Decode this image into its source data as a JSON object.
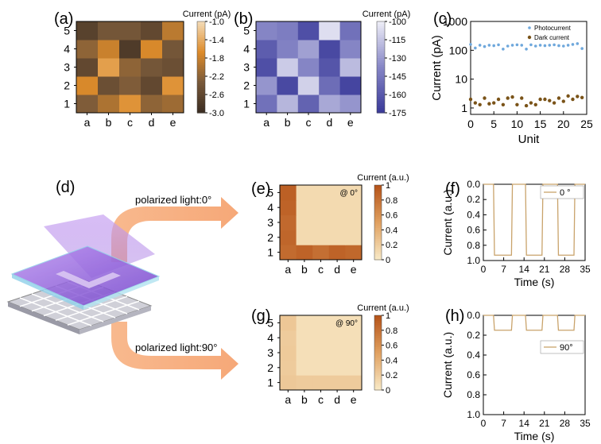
{
  "panel_labels": {
    "a": "(a)",
    "b": "(b)",
    "c": "(c)",
    "d": "(d)",
    "e": "(e)",
    "f": "(f)",
    "g": "(g)",
    "h": "(h)"
  },
  "arrows": {
    "top_label": "polarized light:0°",
    "bottom_label": "polarized light:90°"
  },
  "colors": {
    "brown_dark": "#3d2e22",
    "brown_light": "#f3d9b3",
    "orange": "#dd8b2a",
    "blue_dark": "#3b3b9a",
    "blue_light": "#ececf6",
    "arrow": "#f8b98e",
    "trace": "#c9a36b",
    "photo": "#6fa8dc",
    "dark": "#7a5318",
    "purple": "#a070e0"
  },
  "chart_data": [
    {
      "id": "a",
      "type": "heatmap",
      "colorbar_title": "Current (pA)",
      "x_categories": [
        "a",
        "b",
        "c",
        "d",
        "e"
      ],
      "y_categories": [
        "1",
        "2",
        "3",
        "4",
        "5"
      ],
      "values": [
        [
          -2.3,
          -2.0,
          -1.6,
          -2.2,
          -2.1
        ],
        [
          -1.7,
          -2.5,
          -2.3,
          -2.6,
          -1.6
        ],
        [
          -2.6,
          -1.5,
          -2.2,
          -2.4,
          -2.5
        ],
        [
          -2.2,
          -1.8,
          -2.8,
          -1.7,
          -2.4
        ],
        [
          -2.7,
          -2.4,
          -2.4,
          -2.6,
          -1.9
        ]
      ],
      "vmin": -3.0,
      "vmax": -1.0,
      "colorbar_ticks": [
        "-1.0",
        "-1.4",
        "-1.8",
        "-2.2",
        "-2.6",
        "-3.0"
      ]
    },
    {
      "id": "b",
      "type": "heatmap",
      "colorbar_title": "Current (pA)",
      "x_categories": [
        "a",
        "b",
        "c",
        "d",
        "e"
      ],
      "y_categories": [
        "1",
        "2",
        "3",
        "4",
        "5"
      ],
      "values": [
        [
          -148,
          -120,
          -155,
          -125,
          -132
        ],
        [
          -132,
          -168,
          -110,
          -150,
          -170
        ],
        [
          -165,
          -112,
          -138,
          -162,
          -118
        ],
        [
          -158,
          -140,
          -128,
          -168,
          -138
        ],
        [
          -138,
          -142,
          -165,
          -105,
          -148
        ]
      ],
      "vmin": -175,
      "vmax": -100,
      "colorbar_ticks": [
        "-100",
        "-115",
        "-130",
        "-145",
        "-160",
        "-175"
      ]
    },
    {
      "id": "c",
      "type": "scatter",
      "xlabel": "Unit",
      "ylabel": "Current (pA)",
      "yscale": "log",
      "xlim": [
        0,
        25
      ],
      "ylim": [
        0.6,
        1000
      ],
      "x_ticks": [
        "0",
        "5",
        "10",
        "15",
        "20",
        "25"
      ],
      "y_ticks": [
        "1",
        "10",
        "100",
        "1000"
      ],
      "series": [
        {
          "name": "Photocurrent",
          "values": [
            160,
            120,
            150,
            135,
            150,
            145,
            155,
            110,
            140,
            150,
            155,
            150,
            110,
            155,
            140,
            150,
            145,
            150,
            155,
            145,
            140,
            150,
            160,
            170,
            115
          ]
        },
        {
          "name": "Dark current",
          "values": [
            2.0,
            1.5,
            1.3,
            2.2,
            1.4,
            1.5,
            2.0,
            1.3,
            2.2,
            2.4,
            1.3,
            2.2,
            1.2,
            1.5,
            1.3,
            2.0,
            2.0,
            1.8,
            1.5,
            2.2,
            1.7,
            2.6,
            2.0,
            2.5,
            2.3
          ]
        }
      ]
    },
    {
      "id": "e",
      "type": "heatmap",
      "annotation": "@ 0°",
      "colorbar_title": "Current (a.u.)",
      "x_categories": [
        "a",
        "b",
        "c",
        "d",
        "e"
      ],
      "y_categories": [
        "1",
        "2",
        "3",
        "4",
        "5"
      ],
      "values": [
        [
          0.85,
          0.9,
          0.82,
          0.9,
          0.87
        ],
        [
          0.88,
          0.1,
          0.1,
          0.1,
          0.1
        ],
        [
          0.86,
          0.1,
          0.1,
          0.1,
          0.1
        ],
        [
          0.9,
          0.1,
          0.1,
          0.1,
          0.1
        ],
        [
          0.92,
          0.1,
          0.1,
          0.1,
          0.1
        ]
      ],
      "vmin": 0,
      "vmax": 1,
      "colorbar_ticks": [
        "1",
        "0.8",
        "0.6",
        "0.4",
        "0.2",
        "0"
      ]
    },
    {
      "id": "f",
      "type": "line",
      "xlabel": "Time (s)",
      "ylabel": "Current (a.u.)",
      "legend": "0 °",
      "xlim": [
        0,
        35
      ],
      "ylim": [
        0,
        1.0
      ],
      "y_inverted": true,
      "x_ticks": [
        "0",
        "7",
        "14",
        "21",
        "28",
        "35"
      ],
      "y_ticks": [
        "0.0",
        "0.2",
        "0.4",
        "0.6",
        "0.8",
        "1.0"
      ],
      "high_level": 0.93,
      "low_level": 0.0,
      "on_intervals": [
        [
          3.5,
          10
        ],
        [
          14.5,
          20.5
        ],
        [
          25.5,
          31.5
        ]
      ]
    },
    {
      "id": "g",
      "type": "heatmap",
      "annotation": "@ 90°",
      "colorbar_title": "Current (a.u.)",
      "x_categories": [
        "a",
        "b",
        "c",
        "d",
        "e"
      ],
      "y_categories": [
        "1",
        "2",
        "3",
        "4",
        "5"
      ],
      "values": [
        [
          0.22,
          0.2,
          0.2,
          0.2,
          0.2
        ],
        [
          0.2,
          0.06,
          0.06,
          0.06,
          0.06
        ],
        [
          0.21,
          0.06,
          0.06,
          0.06,
          0.06
        ],
        [
          0.2,
          0.06,
          0.06,
          0.06,
          0.06
        ],
        [
          0.23,
          0.06,
          0.06,
          0.06,
          0.06
        ]
      ],
      "vmin": 0,
      "vmax": 1,
      "colorbar_ticks": [
        "1",
        "0.8",
        "0.6",
        "0.4",
        "0.2",
        "0"
      ]
    },
    {
      "id": "h",
      "type": "line",
      "xlabel": "Time (s)",
      "ylabel": "Current (a.u.)",
      "legend": "90°",
      "xlim": [
        0,
        35
      ],
      "ylim": [
        0,
        1.0
      ],
      "y_inverted": true,
      "x_ticks": [
        "0",
        "7",
        "14",
        "21",
        "28",
        "35"
      ],
      "y_ticks": [
        "0.0",
        "0.2",
        "0.4",
        "0.6",
        "0.8",
        "1.0"
      ],
      "high_level": 0.15,
      "low_level": 0.0,
      "on_intervals": [
        [
          3.5,
          10
        ],
        [
          14.5,
          20.5
        ],
        [
          25.5,
          31.5
        ]
      ]
    }
  ]
}
